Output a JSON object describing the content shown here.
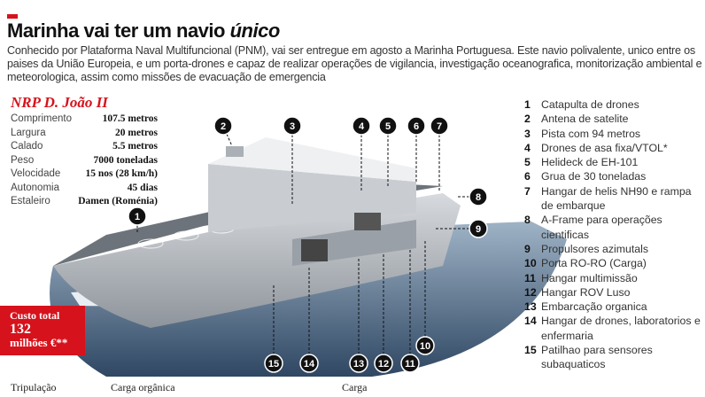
{
  "header": {
    "title_main": "Marinha vai ter um navio",
    "title_italic": "único",
    "lead": "Conhecido por Plataforma Naval Multifuncional (PNM), vai ser entregue em agosto a Marinha Portuguesa. Este navio polivalente, unico entre os paises da União Europeia, e um porta-drones e capaz de realizar operações de vigilancia, investigação oceanografica, monitorização ambiental e meteorologica, assim como missões de evacuação de emergencia"
  },
  "ship": {
    "name": "NRP D. João II",
    "specs": [
      {
        "label": "Comprimento",
        "value": "107.5 metros"
      },
      {
        "label": "Largura",
        "value": "20 metros"
      },
      {
        "label": "Calado",
        "value": "5.5 metros"
      },
      {
        "label": "Peso",
        "value": "7000 toneladas"
      },
      {
        "label": "Velocidade",
        "value": "15 nos (28 km/h)"
      },
      {
        "label": "Autonomia",
        "value": "45 dias"
      },
      {
        "label": "Estaleiro",
        "value": "Damen (Roménia)"
      }
    ]
  },
  "cost": {
    "label": "Custo total",
    "value": "132",
    "unit": "milhões €**"
  },
  "legend": [
    {
      "n": "1",
      "text": "Catapulta de drones"
    },
    {
      "n": "2",
      "text": "Antena de satelite"
    },
    {
      "n": "3",
      "text": "Pista com 94 metros"
    },
    {
      "n": "4",
      "text": "Drones de asa fixa/VTOL*"
    },
    {
      "n": "5",
      "text": "Helideck de EH-101"
    },
    {
      "n": "6",
      "text": "Grua de 30 toneladas"
    },
    {
      "n": "7",
      "text": "Hangar de helis NH90 e rampa de embarque"
    },
    {
      "n": "8",
      "text": "A-Frame para operações cientificas"
    },
    {
      "n": "9",
      "text": "Propulsores azimutals"
    },
    {
      "n": "10",
      "text": "Porta RO-RO (Carga)"
    },
    {
      "n": "11",
      "text": "Hangar multimissão"
    },
    {
      "n": "12",
      "text": "Hangar ROV Luso"
    },
    {
      "n": "13",
      "text": "Embarcação organica"
    },
    {
      "n": "14",
      "text": "Hangar de drones, laboratorios e enfermaria"
    },
    {
      "n": "15",
      "text": "Patilhao para sensores subaquaticos"
    }
  ],
  "bottom": {
    "crew": "Tripulação",
    "organic_cargo": "Carga orgânica",
    "cargo": "Carga"
  },
  "colors": {
    "accent": "#d6121c",
    "marker": "#111111",
    "sea": "#3d5a78"
  }
}
